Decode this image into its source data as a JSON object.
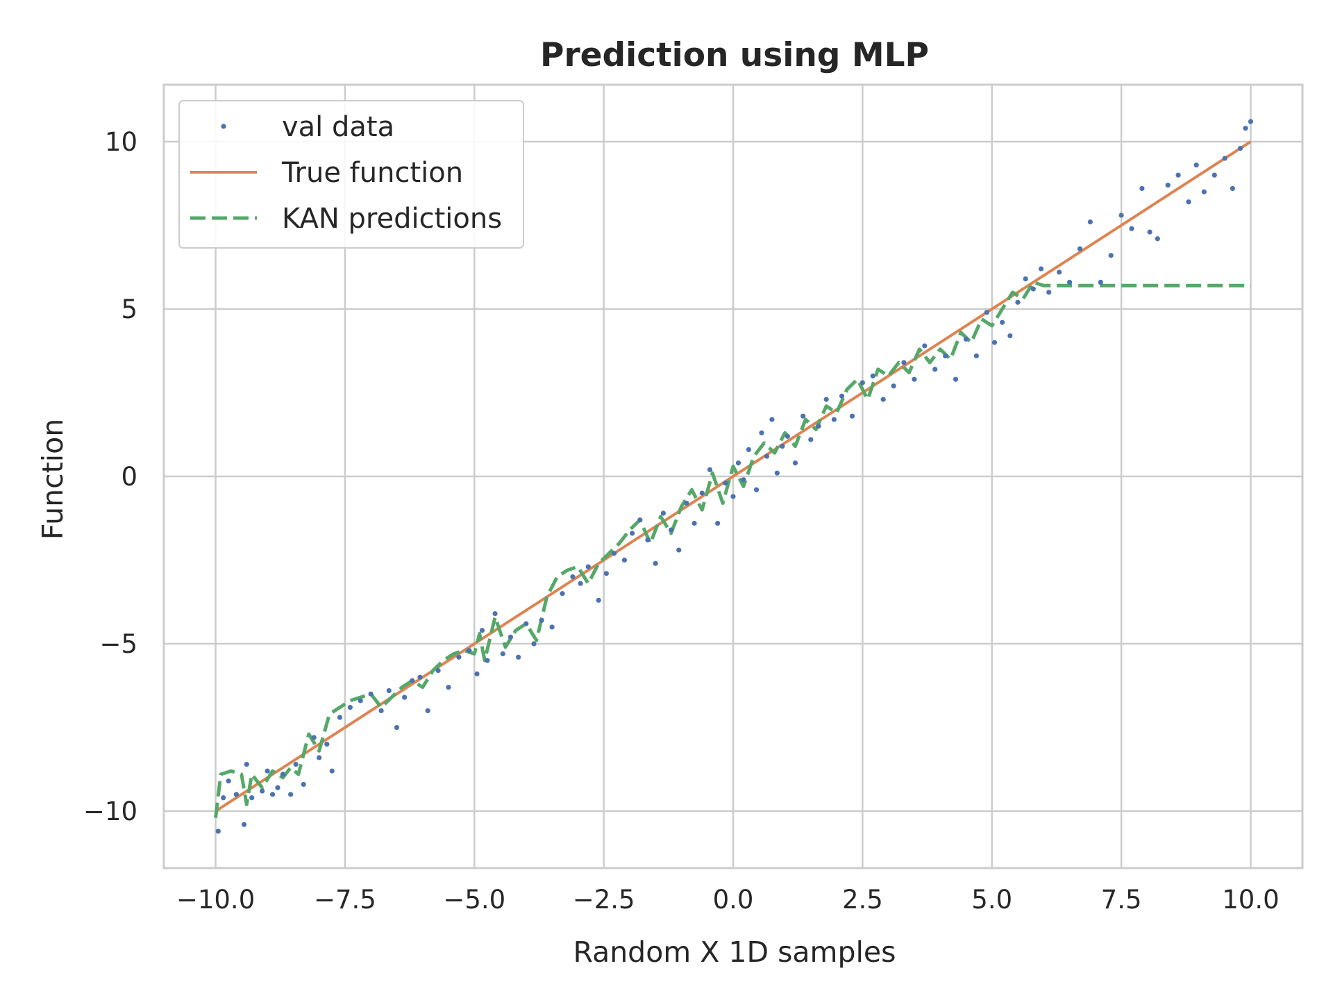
{
  "chart_data": {
    "type": "line",
    "title": "Prediction using MLP",
    "xlabel": "Random X 1D samples",
    "ylabel": "Function",
    "xlim": [
      -11.0,
      11.0
    ],
    "ylim": [
      -11.7,
      11.7
    ],
    "xticks": [
      -10.0,
      -7.5,
      -5.0,
      -2.5,
      0.0,
      2.5,
      5.0,
      7.5,
      10.0
    ],
    "xtick_labels": [
      "−10.0",
      "−7.5",
      "−5.0",
      "−2.5",
      "0.0",
      "2.5",
      "5.0",
      "7.5",
      "10.0"
    ],
    "yticks": [
      -10,
      -5,
      0,
      5,
      10
    ],
    "ytick_labels": [
      "−10",
      "−5",
      "0",
      "5",
      "10"
    ],
    "grid": true,
    "legend_position": "top-left",
    "colors": {
      "val_data": "#4c72b0",
      "true_function": "#dd8452",
      "predictions": "#55a868",
      "grid": "#cccccc",
      "spine": "#cccccc"
    },
    "series": [
      {
        "name": "val data",
        "style": "points",
        "x": [
          -9.95,
          -9.85,
          -9.75,
          -9.6,
          -9.45,
          -9.4,
          -9.3,
          -9.1,
          -9.0,
          -8.9,
          -8.8,
          -8.7,
          -8.55,
          -8.45,
          -8.3,
          -8.1,
          -8.0,
          -7.85,
          -7.75,
          -7.6,
          -7.4,
          -7.2,
          -7.0,
          -6.8,
          -6.65,
          -6.5,
          -6.35,
          -6.2,
          -6.05,
          -5.9,
          -5.7,
          -5.5,
          -5.3,
          -5.1,
          -4.95,
          -4.85,
          -4.75,
          -4.6,
          -4.45,
          -4.3,
          -4.15,
          -4.0,
          -3.85,
          -3.7,
          -3.5,
          -3.3,
          -3.1,
          -2.95,
          -2.8,
          -2.6,
          -2.45,
          -2.3,
          -2.1,
          -1.95,
          -1.8,
          -1.65,
          -1.5,
          -1.35,
          -1.2,
          -1.05,
          -0.9,
          -0.75,
          -0.6,
          -0.45,
          -0.3,
          -0.15,
          0.0,
          0.1,
          0.2,
          0.3,
          0.45,
          0.55,
          0.65,
          0.75,
          0.85,
          0.95,
          1.05,
          1.2,
          1.35,
          1.5,
          1.65,
          1.8,
          1.95,
          2.1,
          2.3,
          2.5,
          2.7,
          2.9,
          3.1,
          3.3,
          3.5,
          3.7,
          3.9,
          4.1,
          4.3,
          4.5,
          4.7,
          4.9,
          5.05,
          5.2,
          5.35,
          5.5,
          5.65,
          5.8,
          5.95,
          6.1,
          6.3,
          6.5,
          6.7,
          6.9,
          7.1,
          7.3,
          7.5,
          7.7,
          7.9,
          8.05,
          8.2,
          8.4,
          8.6,
          8.8,
          8.95,
          9.1,
          9.3,
          9.5,
          9.65,
          9.8,
          9.9,
          10.0
        ],
        "y": [
          -10.6,
          -9.6,
          -9.1,
          -9.5,
          -10.4,
          -8.6,
          -9.6,
          -9.4,
          -8.8,
          -9.5,
          -9.3,
          -8.9,
          -9.5,
          -8.6,
          -9.2,
          -7.8,
          -8.4,
          -8.0,
          -8.8,
          -7.2,
          -6.9,
          -6.7,
          -6.5,
          -7.0,
          -6.4,
          -7.5,
          -6.6,
          -6.1,
          -6.0,
          -7.0,
          -5.8,
          -6.3,
          -5.4,
          -5.2,
          -5.9,
          -4.6,
          -5.5,
          -4.1,
          -5.3,
          -4.8,
          -5.4,
          -4.4,
          -5.0,
          -4.3,
          -4.5,
          -3.5,
          -3.0,
          -3.2,
          -2.7,
          -3.7,
          -2.9,
          -2.3,
          -2.5,
          -1.7,
          -1.3,
          -1.9,
          -2.6,
          -1.1,
          -1.6,
          -2.2,
          -0.8,
          -1.4,
          -0.5,
          0.2,
          -1.4,
          -0.2,
          -0.6,
          0.4,
          -0.1,
          0.8,
          -0.4,
          1.3,
          0.6,
          1.7,
          0.1,
          0.9,
          1.2,
          0.4,
          1.8,
          1.1,
          1.5,
          2.3,
          1.7,
          2.4,
          1.8,
          2.8,
          3.0,
          2.3,
          2.7,
          3.4,
          2.9,
          3.9,
          3.2,
          3.6,
          2.9,
          4.1,
          3.6,
          4.9,
          4.0,
          4.6,
          4.2,
          5.2,
          5.9,
          5.6,
          6.2,
          5.5,
          6.1,
          5.8,
          6.8,
          7.6,
          5.8,
          6.6,
          7.8,
          7.4,
          8.6,
          7.3,
          7.1,
          8.7,
          9.0,
          8.2,
          9.3,
          8.5,
          9.0,
          9.5,
          8.6,
          9.8,
          10.4,
          10.6
        ]
      },
      {
        "name": "True function",
        "style": "line",
        "x": [
          -10.0,
          10.0
        ],
        "y": [
          -10.0,
          10.0
        ]
      },
      {
        "name": "KAN predictions",
        "style": "dashed",
        "x": [
          -10.0,
          -9.9,
          -9.7,
          -9.5,
          -9.4,
          -9.3,
          -9.1,
          -8.9,
          -8.7,
          -8.55,
          -8.4,
          -8.2,
          -8.0,
          -7.8,
          -7.6,
          -7.4,
          -7.2,
          -7.0,
          -6.8,
          -6.6,
          -6.4,
          -6.2,
          -6.0,
          -5.8,
          -5.6,
          -5.4,
          -5.2,
          -5.0,
          -4.9,
          -4.8,
          -4.6,
          -4.4,
          -4.2,
          -4.0,
          -3.8,
          -3.6,
          -3.4,
          -3.2,
          -3.0,
          -2.8,
          -2.6,
          -2.4,
          -2.2,
          -2.0,
          -1.8,
          -1.6,
          -1.4,
          -1.2,
          -1.0,
          -0.8,
          -0.6,
          -0.4,
          -0.2,
          0.0,
          0.2,
          0.4,
          0.6,
          0.8,
          1.0,
          1.2,
          1.4,
          1.6,
          1.8,
          2.0,
          2.2,
          2.4,
          2.6,
          2.8,
          3.0,
          3.2,
          3.4,
          3.6,
          3.8,
          4.0,
          4.2,
          4.4,
          4.6,
          4.8,
          5.0,
          5.2,
          5.4,
          5.6,
          5.8,
          6.0,
          6.5,
          7.0,
          8.0,
          9.0,
          10.0
        ],
        "y": [
          -10.2,
          -8.9,
          -8.8,
          -8.9,
          -9.8,
          -8.9,
          -9.3,
          -8.8,
          -9.0,
          -8.7,
          -8.9,
          -7.7,
          -8.2,
          -7.1,
          -6.9,
          -6.7,
          -6.6,
          -6.5,
          -6.9,
          -6.6,
          -6.3,
          -6.1,
          -6.3,
          -5.8,
          -5.5,
          -5.3,
          -5.2,
          -5.3,
          -4.7,
          -5.5,
          -4.2,
          -5.1,
          -4.6,
          -4.4,
          -4.9,
          -3.6,
          -3.0,
          -2.8,
          -2.7,
          -3.2,
          -2.6,
          -2.3,
          -2.0,
          -1.6,
          -1.3,
          -2.0,
          -1.2,
          -1.7,
          -0.9,
          -0.4,
          -1.0,
          0.1,
          -0.8,
          0.3,
          -0.3,
          0.6,
          1.0,
          0.7,
          1.3,
          0.9,
          1.7,
          1.4,
          2.1,
          1.9,
          2.6,
          2.9,
          2.3,
          3.2,
          3.0,
          3.4,
          3.1,
          3.8,
          3.4,
          3.8,
          3.5,
          4.3,
          4.0,
          4.7,
          4.5,
          5.0,
          5.5,
          5.3,
          5.8,
          5.7,
          5.7,
          5.7,
          5.7,
          5.7,
          5.7
        ]
      }
    ]
  }
}
